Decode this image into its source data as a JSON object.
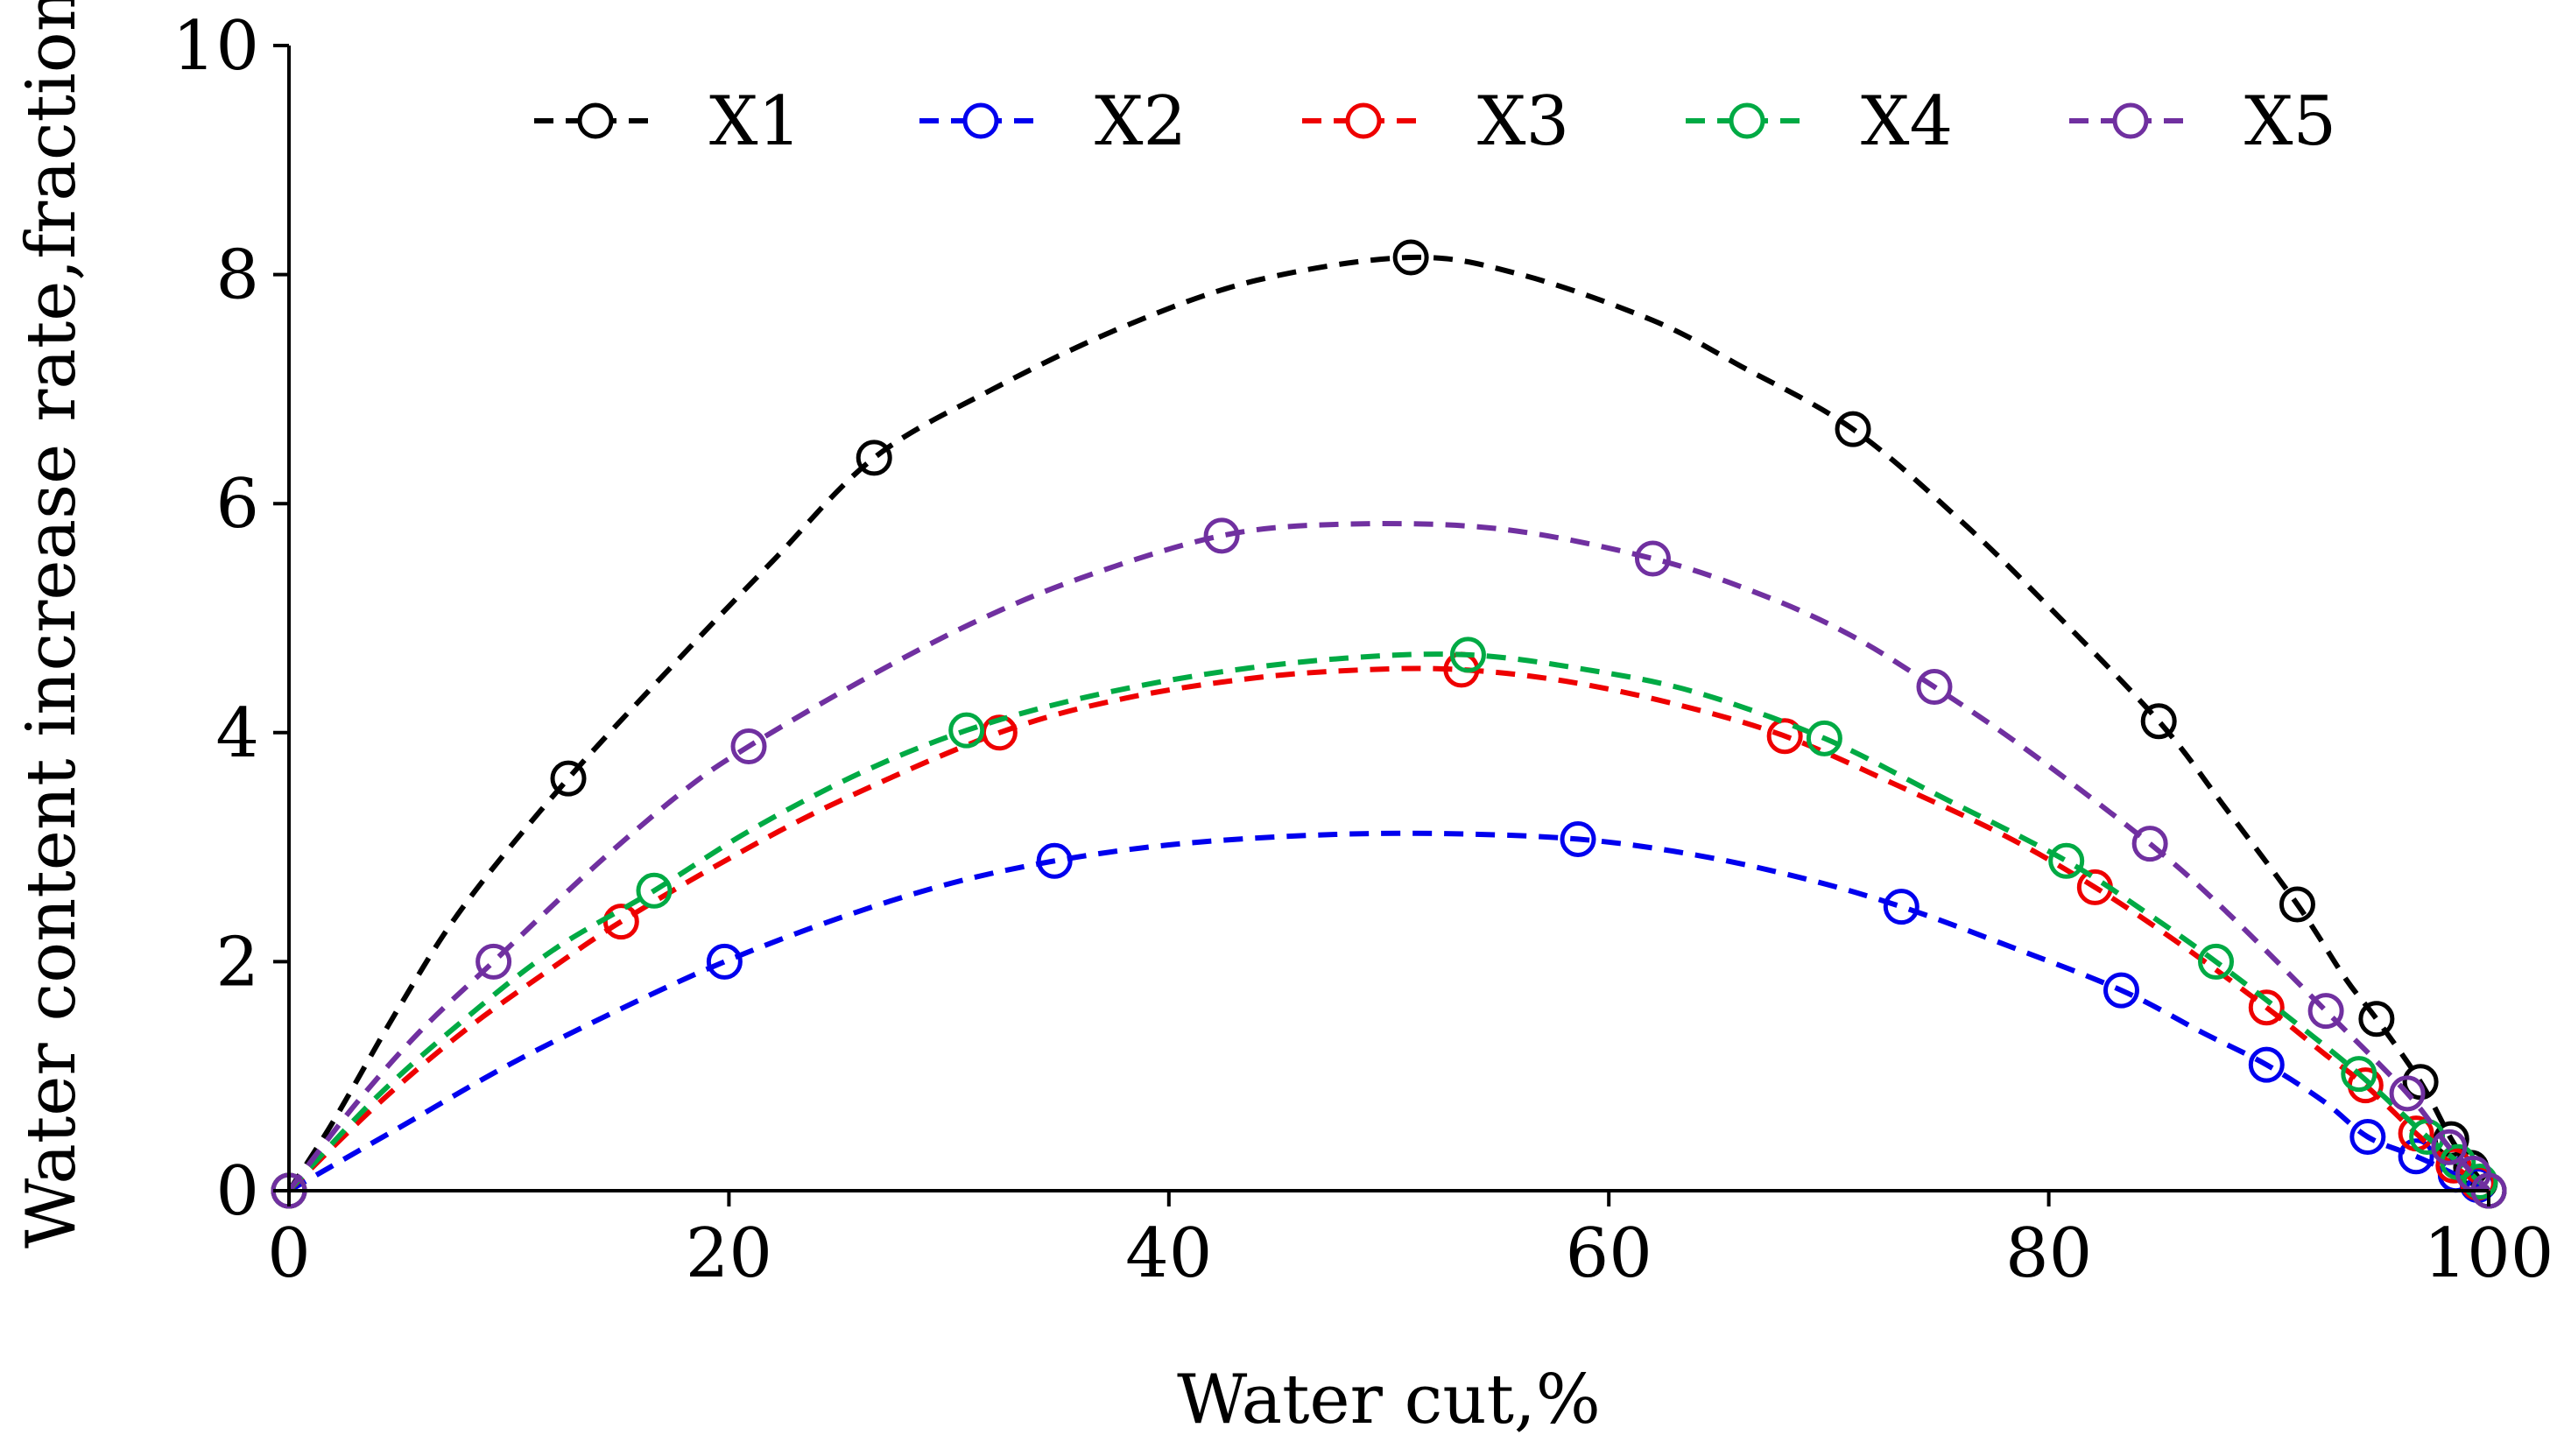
{
  "chart_data": {
    "type": "line",
    "title": "",
    "xlabel": "Water cut,%",
    "ylabel": "Water content increase rate,fraction",
    "xlim": [
      0,
      100
    ],
    "ylim": [
      0,
      10
    ],
    "xticks": [
      0,
      20,
      40,
      60,
      80,
      100
    ],
    "yticks": [
      0,
      2,
      4,
      6,
      8,
      10
    ],
    "grid": false,
    "legend_position": "top",
    "series": [
      {
        "name": "X1",
        "color": "#000000",
        "points": [
          [
            0,
            0
          ],
          [
            12.7,
            3.6
          ],
          [
            26.6,
            6.4
          ],
          [
            51.0,
            8.15
          ],
          [
            71.1,
            6.65
          ],
          [
            85.0,
            4.1
          ],
          [
            91.3,
            2.5
          ],
          [
            94.9,
            1.5
          ],
          [
            96.9,
            0.95
          ],
          [
            98.3,
            0.45
          ],
          [
            99.2,
            0.2
          ],
          [
            99.6,
            0.07
          ],
          [
            100,
            0
          ]
        ],
        "curve": [
          [
            0,
            0
          ],
          [
            2,
            0.6
          ],
          [
            5,
            1.6
          ],
          [
            8,
            2.5
          ],
          [
            12.7,
            3.6
          ],
          [
            18,
            4.7
          ],
          [
            22,
            5.5
          ],
          [
            26.6,
            6.4
          ],
          [
            32,
            7.0
          ],
          [
            38,
            7.55
          ],
          [
            44,
            7.95
          ],
          [
            51,
            8.15
          ],
          [
            56,
            8.0
          ],
          [
            62,
            7.6
          ],
          [
            66,
            7.2
          ],
          [
            71.1,
            6.65
          ],
          [
            76,
            5.85
          ],
          [
            80,
            5.1
          ],
          [
            85,
            4.1
          ],
          [
            88,
            3.35
          ],
          [
            91.3,
            2.5
          ],
          [
            93.5,
            1.85
          ],
          [
            94.9,
            1.5
          ],
          [
            96.9,
            0.95
          ],
          [
            98.3,
            0.45
          ],
          [
            99.2,
            0.2
          ],
          [
            100,
            0
          ]
        ]
      },
      {
        "name": "X2",
        "color": "#0000ee",
        "points": [
          [
            0,
            0
          ],
          [
            19.8,
            2.0
          ],
          [
            34.8,
            2.88
          ],
          [
            58.6,
            3.07
          ],
          [
            73.3,
            2.48
          ],
          [
            83.3,
            1.75
          ],
          [
            89.9,
            1.1
          ],
          [
            94.5,
            0.47
          ],
          [
            96.7,
            0.3
          ],
          [
            98.5,
            0.14
          ],
          [
            99.5,
            0.05
          ],
          [
            100,
            0
          ]
        ],
        "curve": [
          [
            0,
            0
          ],
          [
            5,
            0.55
          ],
          [
            10,
            1.1
          ],
          [
            15,
            1.58
          ],
          [
            19.8,
            2.0
          ],
          [
            25,
            2.38
          ],
          [
            30,
            2.68
          ],
          [
            34.8,
            2.88
          ],
          [
            40,
            3.02
          ],
          [
            46,
            3.1
          ],
          [
            52,
            3.12
          ],
          [
            58.6,
            3.07
          ],
          [
            64,
            2.93
          ],
          [
            69,
            2.72
          ],
          [
            73.3,
            2.48
          ],
          [
            78,
            2.15
          ],
          [
            83.3,
            1.75
          ],
          [
            87,
            1.38
          ],
          [
            89.9,
            1.1
          ],
          [
            92.5,
            0.78
          ],
          [
            94.5,
            0.47
          ],
          [
            96.7,
            0.3
          ],
          [
            98.5,
            0.14
          ],
          [
            100,
            0
          ]
        ]
      },
      {
        "name": "X3",
        "color": "#ee0000",
        "points": [
          [
            0,
            0
          ],
          [
            15.1,
            2.35
          ],
          [
            32.3,
            4.0
          ],
          [
            53.3,
            4.55
          ],
          [
            68.0,
            3.97
          ],
          [
            82.1,
            2.65
          ],
          [
            89.9,
            1.6
          ],
          [
            94.4,
            0.92
          ],
          [
            96.7,
            0.5
          ],
          [
            98.4,
            0.22
          ],
          [
            99.5,
            0.07
          ],
          [
            100,
            0
          ]
        ],
        "curve": [
          [
            0,
            0
          ],
          [
            4,
            0.75
          ],
          [
            8,
            1.4
          ],
          [
            12,
            1.95
          ],
          [
            15.1,
            2.35
          ],
          [
            20,
            2.9
          ],
          [
            25,
            3.4
          ],
          [
            32.3,
            4.0
          ],
          [
            38,
            4.3
          ],
          [
            44,
            4.48
          ],
          [
            49,
            4.55
          ],
          [
            53.3,
            4.55
          ],
          [
            58,
            4.45
          ],
          [
            63,
            4.25
          ],
          [
            68,
            3.97
          ],
          [
            73,
            3.55
          ],
          [
            78,
            3.1
          ],
          [
            82.1,
            2.65
          ],
          [
            86,
            2.15
          ],
          [
            89.9,
            1.6
          ],
          [
            92.5,
            1.2
          ],
          [
            94.4,
            0.92
          ],
          [
            96.7,
            0.5
          ],
          [
            98.4,
            0.22
          ],
          [
            100,
            0
          ]
        ]
      },
      {
        "name": "X4",
        "color": "#00aa44",
        "points": [
          [
            0,
            0
          ],
          [
            16.6,
            2.62
          ],
          [
            30.8,
            4.02
          ],
          [
            53.6,
            4.68
          ],
          [
            69.8,
            3.95
          ],
          [
            80.8,
            2.88
          ],
          [
            87.6,
            2.0
          ],
          [
            94.1,
            1.02
          ],
          [
            97.2,
            0.47
          ],
          [
            98.6,
            0.25
          ],
          [
            99.6,
            0.08
          ],
          [
            100,
            0
          ]
        ],
        "curve": [
          [
            0,
            0
          ],
          [
            4,
            0.82
          ],
          [
            8,
            1.5
          ],
          [
            12,
            2.1
          ],
          [
            16.6,
            2.62
          ],
          [
            21,
            3.15
          ],
          [
            26,
            3.65
          ],
          [
            30.8,
            4.02
          ],
          [
            36,
            4.3
          ],
          [
            42,
            4.52
          ],
          [
            48,
            4.65
          ],
          [
            53.6,
            4.68
          ],
          [
            59,
            4.55
          ],
          [
            64,
            4.35
          ],
          [
            69.8,
            3.95
          ],
          [
            75,
            3.45
          ],
          [
            80.8,
            2.88
          ],
          [
            84.5,
            2.42
          ],
          [
            87.6,
            2.0
          ],
          [
            91,
            1.5
          ],
          [
            94.1,
            1.02
          ],
          [
            97.2,
            0.47
          ],
          [
            98.6,
            0.25
          ],
          [
            100,
            0
          ]
        ]
      },
      {
        "name": "X5",
        "color": "#7030a0",
        "points": [
          [
            0,
            0
          ],
          [
            9.3,
            2.0
          ],
          [
            20.9,
            3.88
          ],
          [
            42.4,
            5.72
          ],
          [
            62.0,
            5.52
          ],
          [
            74.8,
            4.4
          ],
          [
            84.6,
            3.03
          ],
          [
            92.6,
            1.57
          ],
          [
            96.3,
            0.85
          ],
          [
            98.2,
            0.38
          ],
          [
            99.3,
            0.15
          ],
          [
            100,
            0
          ]
        ],
        "curve": [
          [
            0,
            0
          ],
          [
            3,
            0.75
          ],
          [
            6,
            1.4
          ],
          [
            9.3,
            2.0
          ],
          [
            14,
            2.85
          ],
          [
            18,
            3.5
          ],
          [
            20.9,
            3.88
          ],
          [
            26,
            4.45
          ],
          [
            31,
            4.95
          ],
          [
            36,
            5.35
          ],
          [
            42.4,
            5.72
          ],
          [
            48,
            5.82
          ],
          [
            55,
            5.78
          ],
          [
            62,
            5.52
          ],
          [
            67,
            5.2
          ],
          [
            71,
            4.85
          ],
          [
            74.8,
            4.4
          ],
          [
            79,
            3.85
          ],
          [
            84.6,
            3.03
          ],
          [
            88,
            2.45
          ],
          [
            92.6,
            1.57
          ],
          [
            96.3,
            0.85
          ],
          [
            98.2,
            0.38
          ],
          [
            100,
            0
          ]
        ]
      }
    ]
  }
}
